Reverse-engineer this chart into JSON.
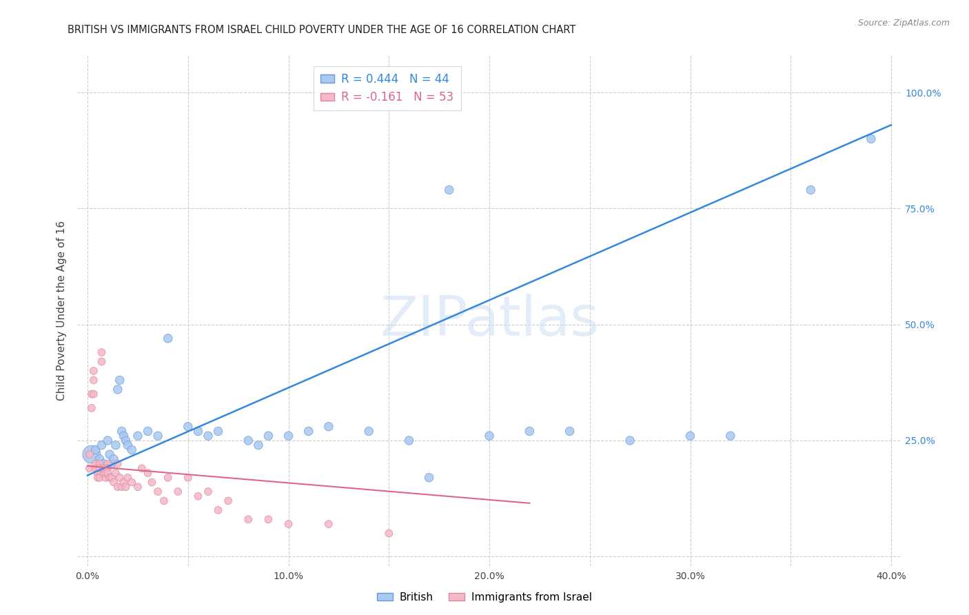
{
  "title": "BRITISH VS IMMIGRANTS FROM ISRAEL CHILD POVERTY UNDER THE AGE OF 16 CORRELATION CHART",
  "source": "Source: ZipAtlas.com",
  "ylabel": "Child Poverty Under the Age of 16",
  "x_ticks": [
    0.0,
    0.05,
    0.1,
    0.15,
    0.2,
    0.25,
    0.3,
    0.35,
    0.4
  ],
  "x_tick_labels": [
    "0.0%",
    "",
    "10.0%",
    "",
    "20.0%",
    "",
    "30.0%",
    "",
    "40.0%"
  ],
  "y_ticks": [
    0.0,
    0.25,
    0.5,
    0.75,
    1.0
  ],
  "y_tick_labels_right": [
    "",
    "25.0%",
    "50.0%",
    "75.0%",
    "100.0%"
  ],
  "xlim": [
    -0.005,
    0.405
  ],
  "ylim": [
    -0.02,
    1.08
  ],
  "british_R": 0.444,
  "british_N": 44,
  "israel_R": -0.161,
  "israel_N": 53,
  "british_color": "#aac8f0",
  "israel_color": "#f5b8c8",
  "british_edge_color": "#6699dd",
  "israel_edge_color": "#dd8899",
  "british_line_color": "#3388dd",
  "israel_line_color": "#dd6688",
  "watermark": "ZIPatlas",
  "british_x": [
    0.002,
    0.004,
    0.006,
    0.007,
    0.008,
    0.009,
    0.01,
    0.011,
    0.012,
    0.013,
    0.014,
    0.015,
    0.016,
    0.017,
    0.018,
    0.019,
    0.02,
    0.022,
    0.025,
    0.03,
    0.035,
    0.04,
    0.05,
    0.055,
    0.06,
    0.065,
    0.08,
    0.085,
    0.09,
    0.1,
    0.11,
    0.12,
    0.14,
    0.16,
    0.17,
    0.18,
    0.2,
    0.22,
    0.24,
    0.27,
    0.3,
    0.32,
    0.36,
    0.39
  ],
  "british_y": [
    0.22,
    0.23,
    0.21,
    0.24,
    0.2,
    0.19,
    0.25,
    0.22,
    0.2,
    0.21,
    0.24,
    0.36,
    0.38,
    0.27,
    0.26,
    0.25,
    0.24,
    0.23,
    0.26,
    0.27,
    0.26,
    0.47,
    0.28,
    0.27,
    0.26,
    0.27,
    0.25,
    0.24,
    0.26,
    0.26,
    0.27,
    0.28,
    0.27,
    0.25,
    0.17,
    0.79,
    0.26,
    0.27,
    0.27,
    0.25,
    0.26,
    0.26,
    0.79,
    0.9
  ],
  "british_sizes": [
    350,
    80,
    80,
    80,
    80,
    80,
    80,
    80,
    80,
    80,
    80,
    80,
    80,
    80,
    80,
    80,
    80,
    80,
    80,
    80,
    80,
    80,
    80,
    80,
    80,
    80,
    80,
    80,
    80,
    80,
    80,
    80,
    80,
    80,
    80,
    80,
    80,
    80,
    80,
    80,
    80,
    80,
    80,
    80
  ],
  "israel_x": [
    0.001,
    0.001,
    0.002,
    0.002,
    0.003,
    0.003,
    0.003,
    0.004,
    0.004,
    0.005,
    0.005,
    0.006,
    0.006,
    0.006,
    0.007,
    0.007,
    0.008,
    0.008,
    0.009,
    0.009,
    0.01,
    0.01,
    0.01,
    0.011,
    0.012,
    0.013,
    0.014,
    0.015,
    0.015,
    0.016,
    0.017,
    0.018,
    0.019,
    0.02,
    0.022,
    0.025,
    0.027,
    0.03,
    0.032,
    0.035,
    0.038,
    0.04,
    0.045,
    0.05,
    0.055,
    0.06,
    0.065,
    0.07,
    0.08,
    0.09,
    0.1,
    0.12,
    0.15
  ],
  "israel_y": [
    0.19,
    0.22,
    0.32,
    0.35,
    0.38,
    0.35,
    0.4,
    0.2,
    0.19,
    0.18,
    0.17,
    0.2,
    0.19,
    0.17,
    0.42,
    0.44,
    0.18,
    0.19,
    0.17,
    0.18,
    0.2,
    0.19,
    0.18,
    0.17,
    0.17,
    0.16,
    0.18,
    0.2,
    0.15,
    0.17,
    0.15,
    0.16,
    0.15,
    0.17,
    0.16,
    0.15,
    0.19,
    0.18,
    0.16,
    0.14,
    0.12,
    0.17,
    0.14,
    0.17,
    0.13,
    0.14,
    0.1,
    0.12,
    0.08,
    0.08,
    0.07,
    0.07,
    0.05
  ],
  "israel_sizes": [
    60,
    60,
    60,
    60,
    60,
    60,
    60,
    60,
    60,
    60,
    60,
    60,
    60,
    60,
    60,
    60,
    60,
    60,
    60,
    60,
    60,
    60,
    60,
    60,
    60,
    60,
    60,
    60,
    60,
    60,
    60,
    60,
    60,
    60,
    60,
    60,
    60,
    60,
    60,
    60,
    60,
    60,
    60,
    60,
    60,
    60,
    60,
    60,
    60,
    60,
    60,
    60,
    60
  ],
  "british_line_x0": 0.0,
  "british_line_y0": 0.175,
  "british_line_x1": 0.4,
  "british_line_y1": 0.93,
  "israel_line_x0": 0.0,
  "israel_line_y0": 0.195,
  "israel_line_x1": 0.22,
  "israel_line_y1": 0.115
}
